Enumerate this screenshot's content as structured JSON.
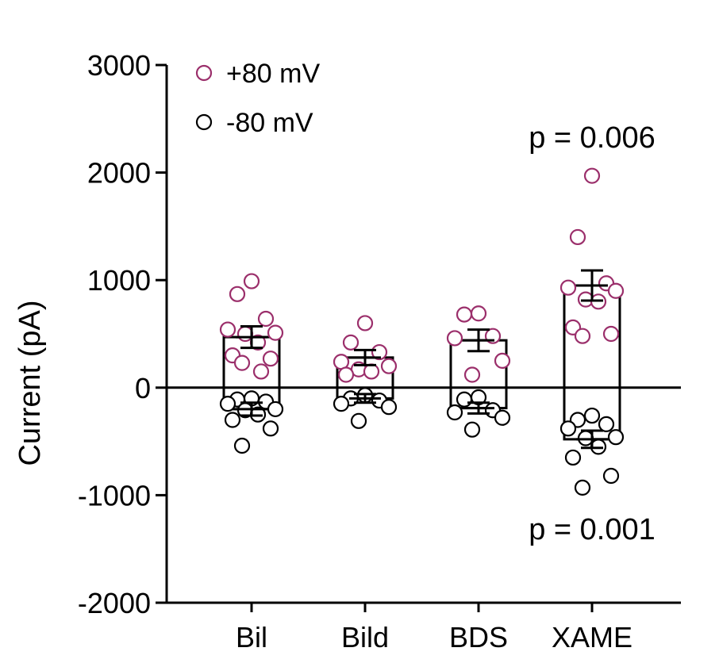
{
  "chart_data": {
    "type": "bar",
    "title": "",
    "xlabel": "",
    "ylabel": "Current (pA)",
    "ylim": [
      -2000,
      3000
    ],
    "yticks": [
      3000,
      2000,
      1000,
      0,
      -1000,
      -2000
    ],
    "categories": [
      "Bil",
      "Bild",
      "BDS",
      "XAME"
    ],
    "colors": {
      "pos": "#9b2f6b",
      "neg": "#000000"
    },
    "legend": {
      "placement": "top-left"
    },
    "series": [
      {
        "name": "+80 mV",
        "means": [
          470,
          280,
          440,
          950
        ],
        "sem": [
          100,
          70,
          100,
          140
        ],
        "points": [
          [
            990,
            870,
            640,
            540,
            510,
            500,
            420,
            300,
            270,
            230,
            150
          ],
          [
            600,
            420,
            330,
            240,
            200,
            170,
            150,
            120
          ],
          [
            690,
            680,
            480,
            460,
            250,
            120
          ],
          [
            1970,
            1400,
            970,
            930,
            900,
            820,
            800,
            560,
            500,
            480
          ]
        ]
      },
      {
        "name": "-80 mV",
        "means": [
          -200,
          -100,
          -190,
          -480
        ],
        "sem": [
          60,
          40,
          50,
          80
        ],
        "points": [
          [
            -100,
            -110,
            -130,
            -150,
            -200,
            -210,
            -250,
            -300,
            -380,
            -540
          ],
          [
            -70,
            -100,
            -120,
            -150,
            -180,
            -310
          ],
          [
            -90,
            -110,
            -210,
            -230,
            -280,
            -390
          ],
          [
            -260,
            -300,
            -340,
            -380,
            -460,
            -470,
            -550,
            -650,
            -820,
            -930
          ]
        ]
      }
    ],
    "annotations": [
      {
        "text": "p = 0.006",
        "position": "top-right"
      },
      {
        "text": "p = 0.001",
        "position": "bottom-right"
      }
    ]
  }
}
